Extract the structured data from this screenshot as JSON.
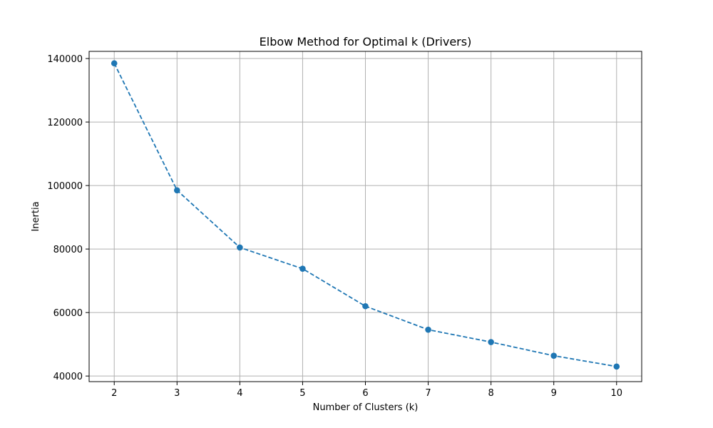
{
  "chart_data": {
    "type": "line",
    "title": "Elbow Method for Optimal k (Drivers)",
    "xlabel": "Number of Clusters (k)",
    "ylabel": "Inertia",
    "x": [
      2,
      3,
      4,
      5,
      6,
      7,
      8,
      9,
      10
    ],
    "series": [
      {
        "values": [
          138500,
          98500,
          80500,
          73800,
          62000,
          54600,
          50700,
          46400,
          43000
        ],
        "color": "#1f77b4",
        "line_style": "dashed",
        "marker": "circle"
      }
    ],
    "xlim": [
      1.6,
      10.4
    ],
    "ylim": [
      38240,
      142260
    ],
    "xticks": [
      2,
      3,
      4,
      5,
      6,
      7,
      8,
      9,
      10
    ],
    "yticks": [
      40000,
      60000,
      80000,
      100000,
      120000,
      140000
    ],
    "grid": true
  }
}
